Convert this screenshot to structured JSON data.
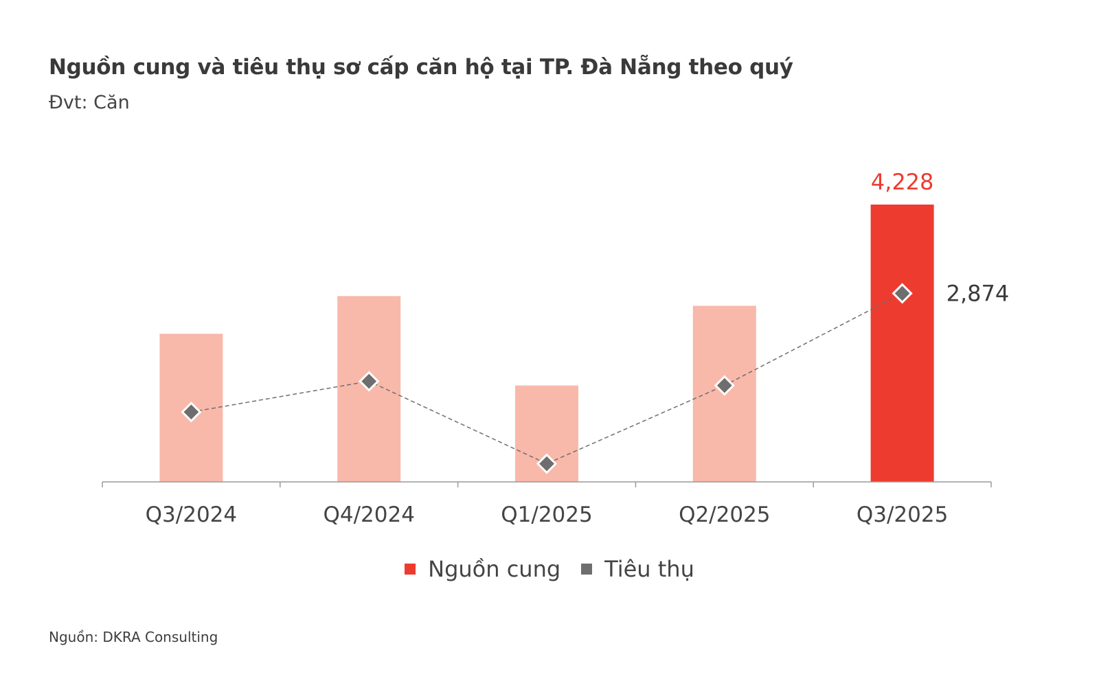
{
  "title": "Nguồn cung và tiêu thụ sơ cấp căn hộ tại TP. Đà Nẵng theo quý",
  "subtitle": "Đvt: Căn",
  "source": "Nguồn: DKRA Consulting",
  "colors": {
    "supply": "#ee3b2f",
    "supply_faded": "#f8b9aa",
    "consumption": "#6e6e6e",
    "axis": "#9a9a9a"
  },
  "chart_data": {
    "type": "bar",
    "categories": [
      "Q3/2024",
      "Q4/2024",
      "Q1/2025",
      "Q2/2025",
      "Q3/2025"
    ],
    "series": [
      {
        "name": "Nguồn cung",
        "type": "bar",
        "values": [
          2258,
          2833,
          1470,
          2684,
          4228
        ],
        "data_labels": {
          "4": "4,228"
        }
      },
      {
        "name": "Tiêu thụ",
        "type": "line",
        "values": [
          1065,
          1534,
          277,
          1470,
          2874
        ],
        "data_labels": {
          "4": "2,874"
        }
      }
    ],
    "ylim": [
      0,
      4228
    ],
    "grid": false,
    "legend": "bottom"
  },
  "legend": [
    "Nguồn cung",
    "Tiêu thụ"
  ]
}
